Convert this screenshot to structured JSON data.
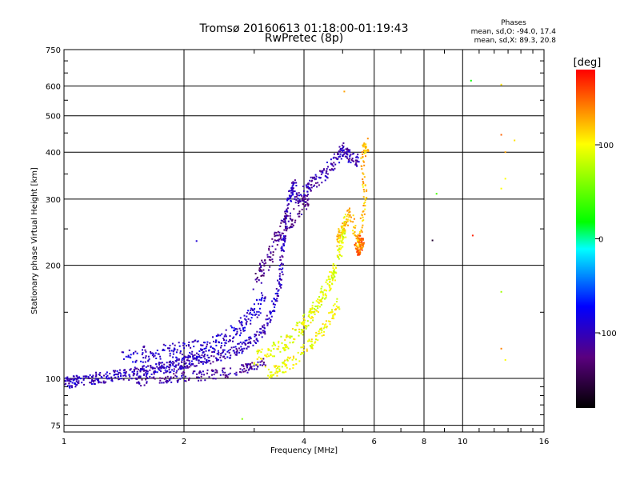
{
  "chart_data": {
    "type": "scatter",
    "title": "Tromsø 20160613 01:18:00-01:19:43",
    "subtitle": "RwPretec (8p)",
    "xlabel": "Frequency [MHz]",
    "ylabel": "Stationary phase Virtual Height [km]",
    "x_scale": "log",
    "y_scale": "log",
    "xlim": [
      1,
      16
    ],
    "ylim": [
      72,
      750
    ],
    "x_ticks": [
      1,
      2,
      4,
      6,
      8,
      10,
      16
    ],
    "y_ticks": [
      75,
      100,
      200,
      300,
      400,
      500,
      600,
      750
    ],
    "grid": true,
    "stats": {
      "heading": "Phases",
      "line_o": "mean, sd,O: -94.0, 17.4",
      "line_x": "mean, sd,X:  89.3, 20.8"
    },
    "colorbar": {
      "label": "[deg]",
      "range": [
        -180,
        180
      ],
      "ticks": [
        100,
        0,
        -100
      ],
      "tick_labels": [
        "100",
        "0",
        "-100"
      ]
    },
    "color_scale": [
      "#000000",
      "#4b0082",
      "#0000ff",
      "#00ffff",
      "#00ff00",
      "#ffff00",
      "#ff0000"
    ],
    "traces": [
      {
        "kind": "O",
        "phase": -100,
        "jitter": 0.035,
        "points": [
          [
            1.0,
            97
          ],
          [
            1.05,
            98
          ],
          [
            1.1,
            99
          ],
          [
            1.2,
            100
          ],
          [
            1.3,
            101
          ],
          [
            1.4,
            102
          ],
          [
            1.5,
            103
          ],
          [
            1.6,
            105
          ],
          [
            1.7,
            106
          ],
          [
            1.8,
            107
          ],
          [
            1.9,
            108
          ],
          [
            2.0,
            110
          ],
          [
            2.1,
            111
          ],
          [
            2.2,
            112
          ],
          [
            2.4,
            114
          ],
          [
            2.6,
            117
          ],
          [
            2.8,
            121
          ],
          [
            3.0,
            127
          ],
          [
            3.2,
            138
          ],
          [
            3.4,
            160
          ],
          [
            3.5,
            190
          ],
          [
            3.55,
            230
          ],
          [
            3.6,
            270
          ],
          [
            3.7,
            310
          ],
          [
            3.8,
            330
          ]
        ]
      },
      {
        "kind": "O2",
        "phase": -95,
        "jitter": 0.05,
        "points": [
          [
            1.4,
            112
          ],
          [
            1.6,
            116
          ],
          [
            1.8,
            118
          ],
          [
            2.0,
            119
          ],
          [
            2.2,
            121
          ],
          [
            2.4,
            124
          ],
          [
            2.6,
            130
          ],
          [
            2.8,
            138
          ],
          [
            3.0,
            150
          ],
          [
            3.2,
            165
          ]
        ]
      },
      {
        "kind": "Olow",
        "phase": -110,
        "jitter": 0.03,
        "points": [
          [
            1.5,
            98
          ],
          [
            1.8,
            100
          ],
          [
            2.0,
            101
          ],
          [
            2.3,
            102
          ],
          [
            2.6,
            104
          ],
          [
            2.9,
            107
          ],
          [
            3.2,
            110
          ]
        ]
      },
      {
        "kind": "Oupper",
        "phase": -105,
        "jitter": 0.04,
        "points": [
          [
            3.8,
            300
          ],
          [
            4.0,
            310
          ],
          [
            4.2,
            330
          ],
          [
            4.5,
            350
          ],
          [
            4.8,
            380
          ],
          [
            5.0,
            410
          ],
          [
            5.2,
            390
          ],
          [
            5.5,
            380
          ]
        ]
      },
      {
        "kind": "Ospread",
        "phase": -120,
        "jitter": 0.06,
        "points": [
          [
            3.0,
            180
          ],
          [
            3.2,
            200
          ],
          [
            3.4,
            230
          ],
          [
            3.6,
            260
          ],
          [
            3.9,
            280
          ],
          [
            4.1,
            300
          ]
        ]
      },
      {
        "kind": "X",
        "phase": 95,
        "jitter": 0.05,
        "points": [
          [
            3.0,
            112
          ],
          [
            3.3,
            118
          ],
          [
            3.6,
            125
          ],
          [
            3.9,
            135
          ],
          [
            4.1,
            145
          ],
          [
            4.3,
            155
          ],
          [
            4.5,
            170
          ],
          [
            4.7,
            185
          ],
          [
            4.9,
            210
          ],
          [
            5.0,
            240
          ],
          [
            5.1,
            260
          ]
        ]
      },
      {
        "kind": "X2",
        "phase": 100,
        "jitter": 0.04,
        "points": [
          [
            3.2,
            103
          ],
          [
            3.5,
            106
          ],
          [
            3.8,
            112
          ],
          [
            4.2,
            125
          ],
          [
            4.6,
            140
          ],
          [
            4.9,
            160
          ]
        ]
      },
      {
        "kind": "Xupper",
        "phase": 120,
        "jitter": 0.04,
        "points": [
          [
            4.8,
            230
          ],
          [
            5.0,
            250
          ],
          [
            5.2,
            280
          ],
          [
            5.5,
            220
          ],
          [
            5.7,
            300
          ],
          [
            5.6,
            400
          ],
          [
            5.8,
            420
          ]
        ]
      },
      {
        "kind": "Xred",
        "phase": 150,
        "jitter": 0.02,
        "points": [
          [
            5.4,
            225
          ],
          [
            5.5,
            215
          ],
          [
            5.6,
            230
          ],
          [
            5.45,
            240
          ]
        ]
      }
    ],
    "isolated": [
      [
        2.15,
        232,
        -90
      ],
      [
        2.8,
        78,
        60
      ],
      [
        5.05,
        580,
        130
      ],
      [
        8.6,
        310,
        40
      ],
      [
        8.4,
        233,
        -160
      ],
      [
        10.5,
        620,
        20
      ],
      [
        10.6,
        240,
        170
      ],
      [
        12.5,
        605,
        110
      ],
      [
        12.5,
        445,
        150
      ],
      [
        12.8,
        400,
        130
      ],
      [
        13.5,
        430,
        110
      ],
      [
        12.8,
        340,
        100
      ],
      [
        12.5,
        320,
        100
      ],
      [
        12.5,
        170,
        70
      ],
      [
        12.5,
        120,
        140
      ],
      [
        12.8,
        112,
        100
      ]
    ]
  }
}
